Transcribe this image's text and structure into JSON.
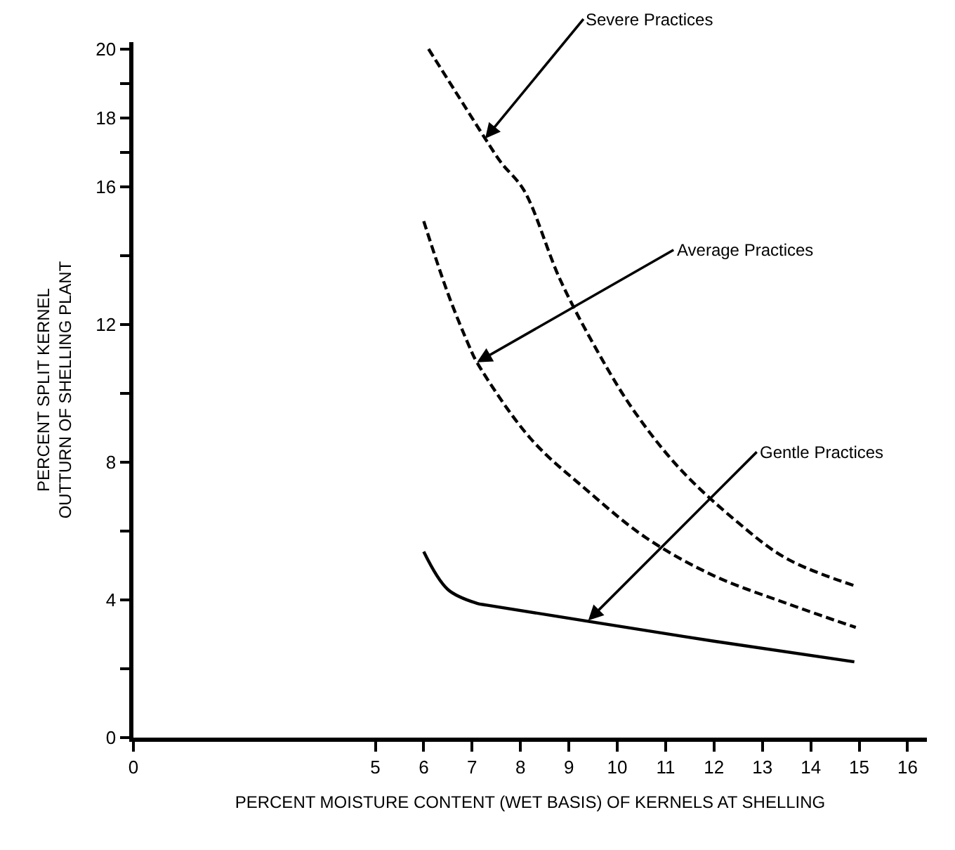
{
  "chart_data": {
    "type": "line",
    "xlabel": "PERCENT MOISTURE CONTENT (WET BASIS) OF KERNELS AT SHELLING",
    "ylabel": "PERCENT SPLIT KERNEL\nOUTTURN OF SHELLING PLANT",
    "xlim": [
      0,
      16.4
    ],
    "xticks": [
      0,
      5,
      6,
      7,
      8,
      9,
      10,
      11,
      12,
      13,
      14,
      15,
      16
    ],
    "ylim": [
      0,
      20.2
    ],
    "yticks": [
      0,
      {
        "value": 2,
        "label": null
      },
      4,
      {
        "value": 6,
        "label": null
      },
      8,
      {
        "value": 10,
        "label": null
      },
      12,
      {
        "value": 14,
        "label": null
      },
      16,
      {
        "value": 17,
        "label": null
      },
      18,
      {
        "value": 19,
        "label": null
      },
      20
    ],
    "marker": "none",
    "series": [
      {
        "color": "#000000",
        "line_style": "dashed",
        "x": [
          6.1,
          6.64,
          7.27,
          7.6,
          8.07,
          8.82,
          9.6,
          10.34,
          11.3,
          12.45,
          13.5,
          14.93
        ],
        "values": [
          20,
          18.8,
          17.4,
          16.7,
          15.9,
          13.3,
          11.2,
          9.5,
          7.8,
          6.3,
          5.2,
          4.4
        ]
      },
      {
        "color": "#000000",
        "line_style": "dashed",
        "x": [
          6.0,
          6.5,
          6.93,
          7.1,
          8.2,
          9.36,
          10.6,
          12.0,
          13.5,
          14.93
        ],
        "values": [
          15.0,
          12.9,
          11.4,
          10.9,
          8.7,
          7.2,
          5.8,
          4.7,
          3.9,
          3.2
        ]
      },
      {
        "color": "#000000",
        "line_style": "solid",
        "x": [
          6.0,
          6.5,
          7.1,
          7.3,
          9.3,
          12.0,
          14.9
        ],
        "values": [
          5.4,
          4.3,
          3.9,
          3.85,
          3.4,
          2.8,
          2.2
        ]
      }
    ],
    "annotations": [
      {
        "text": "Severe Practices",
        "x": 7.27,
        "y": 17.4
      },
      {
        "text": "Average Practices",
        "x": 7.1,
        "y": 10.9
      },
      {
        "text": "Gentle Practices",
        "x": 9.4,
        "y": 3.4
      }
    ]
  }
}
